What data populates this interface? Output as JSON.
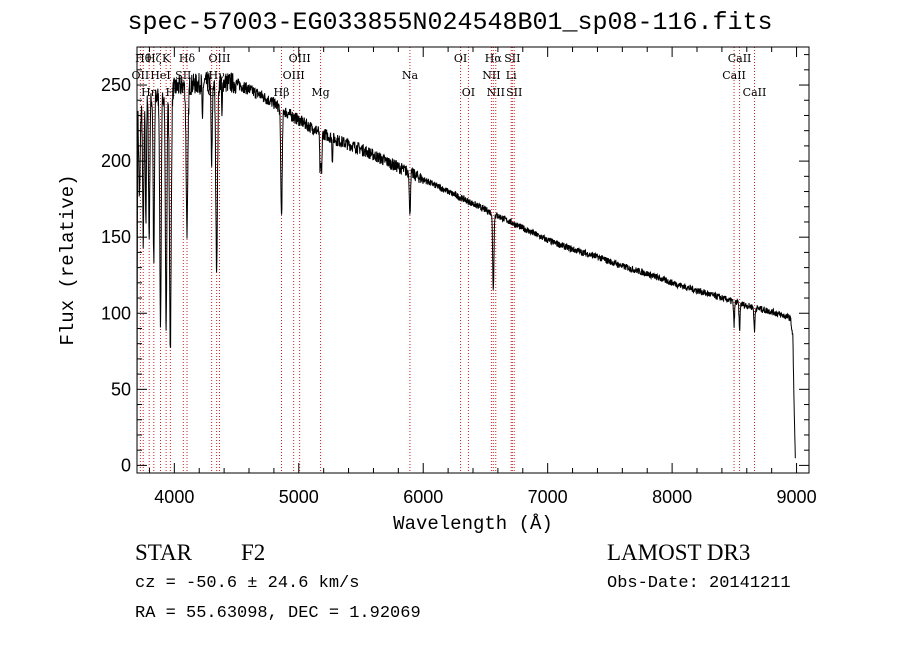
{
  "page": {
    "title": "spec-57003-EG033855N024548B01_sp08-116.fits"
  },
  "info": {
    "object_class": "STAR",
    "subclass": "F2",
    "survey": "LAMOST DR3",
    "cz": "cz = -50.6 ± 24.6 km/s",
    "obs_date": "Obs-Date: 20141211",
    "coords": "RA =  55.63098, DEC =    1.92069"
  },
  "colors": {
    "line_marker": "#cc2222",
    "spectrum": "#000000",
    "axes": "#000000"
  },
  "chart_data": {
    "type": "line",
    "title": "spec-57003-EG033855N024548B01_sp08-116.fits",
    "xlabel": "Wavelength (Å)",
    "ylabel": "Flux (relative)",
    "xlim": [
      3700,
      9100
    ],
    "ylim": [
      -5,
      275
    ],
    "x_ticks": [
      4000,
      5000,
      6000,
      7000,
      8000,
      9000
    ],
    "y_ticks": [
      0,
      50,
      100,
      150,
      200,
      250
    ],
    "continuum": [
      [
        3700,
        5
      ],
      [
        3705,
        235
      ],
      [
        3750,
        238
      ],
      [
        3800,
        240
      ],
      [
        3850,
        242
      ],
      [
        3900,
        244
      ],
      [
        3950,
        246
      ],
      [
        4000,
        248
      ],
      [
        4100,
        250
      ],
      [
        4200,
        251
      ],
      [
        4300,
        252
      ],
      [
        4400,
        252
      ],
      [
        4500,
        251
      ],
      [
        4600,
        247
      ],
      [
        4700,
        243
      ],
      [
        4800,
        238
      ],
      [
        4900,
        232
      ],
      [
        5000,
        227
      ],
      [
        5100,
        222
      ],
      [
        5200,
        218
      ],
      [
        5300,
        214
      ],
      [
        5400,
        211
      ],
      [
        5500,
        208
      ],
      [
        5600,
        204
      ],
      [
        5700,
        200
      ],
      [
        5800,
        196
      ],
      [
        5900,
        192
      ],
      [
        6000,
        188
      ],
      [
        6100,
        184
      ],
      [
        6200,
        180
      ],
      [
        6300,
        176
      ],
      [
        6400,
        172
      ],
      [
        6500,
        168
      ],
      [
        6600,
        164
      ],
      [
        6700,
        160
      ],
      [
        6800,
        156
      ],
      [
        6900,
        152
      ],
      [
        7000,
        148
      ],
      [
        7200,
        142
      ],
      [
        7400,
        137
      ],
      [
        7600,
        131
      ],
      [
        7800,
        126
      ],
      [
        8000,
        120
      ],
      [
        8200,
        115
      ],
      [
        8400,
        110
      ],
      [
        8600,
        105
      ],
      [
        8800,
        101
      ],
      [
        8950,
        97
      ],
      [
        8970,
        85
      ],
      [
        8980,
        40
      ],
      [
        8990,
        5
      ]
    ],
    "absorption_features": [
      {
        "center": 3720,
        "depth": 60,
        "width": 6
      },
      {
        "center": 3750,
        "depth": 90,
        "width": 5
      },
      {
        "center": 3771,
        "depth": 80,
        "width": 4
      },
      {
        "center": 3798,
        "depth": 90,
        "width": 5
      },
      {
        "center": 3835,
        "depth": 110,
        "width": 5
      },
      {
        "center": 3889,
        "depth": 150,
        "width": 6
      },
      {
        "center": 3934,
        "depth": 155,
        "width": 6
      },
      {
        "center": 3968,
        "depth": 170,
        "width": 7
      },
      {
        "center": 4102,
        "depth": 95,
        "width": 7
      },
      {
        "center": 4226,
        "depth": 30,
        "width": 3
      },
      {
        "center": 4300,
        "depth": 55,
        "width": 5
      },
      {
        "center": 4340,
        "depth": 120,
        "width": 7
      },
      {
        "center": 4383,
        "depth": 25,
        "width": 3
      },
      {
        "center": 4861,
        "depth": 70,
        "width": 6
      },
      {
        "center": 5172,
        "depth": 28,
        "width": 4
      },
      {
        "center": 5183,
        "depth": 25,
        "width": 4
      },
      {
        "center": 5270,
        "depth": 15,
        "width": 3
      },
      {
        "center": 5893,
        "depth": 30,
        "width": 4
      },
      {
        "center": 6563,
        "depth": 50,
        "width": 5
      },
      {
        "center": 8498,
        "depth": 15,
        "width": 4
      },
      {
        "center": 8542,
        "depth": 18,
        "width": 4
      },
      {
        "center": 8662,
        "depth": 16,
        "width": 4
      }
    ],
    "line_markers": [
      {
        "label": "OII",
        "wavelength": 3727,
        "row": 2
      },
      {
        "label": "Hθ",
        "wavelength": 3750,
        "row": 1
      },
      {
        "label": "Hη",
        "wavelength": 3798,
        "row": 3
      },
      {
        "label": "Hζ",
        "wavelength": 3835,
        "row": 1
      },
      {
        "label": "HeI",
        "wavelength": 3889,
        "row": 2
      },
      {
        "label": "K",
        "wavelength": 3934,
        "row": 1
      },
      {
        "label": "H",
        "wavelength": 3968,
        "row": 3
      },
      {
        "label": "SII",
        "wavelength": 4072,
        "row": 2
      },
      {
        "label": "Hδ",
        "wavelength": 4102,
        "row": 1
      },
      {
        "label": "G",
        "wavelength": 4300,
        "row": 3
      },
      {
        "label": "Hγ",
        "wavelength": 4340,
        "row": 2
      },
      {
        "label": "OIII",
        "wavelength": 4363,
        "row": 1
      },
      {
        "label": "Hβ",
        "wavelength": 4861,
        "row": 3
      },
      {
        "label": "OIII",
        "wavelength": 4959,
        "row": 2
      },
      {
        "label": "OIII",
        "wavelength": 5007,
        "row": 1
      },
      {
        "label": "Mg",
        "wavelength": 5175,
        "row": 3
      },
      {
        "label": "Na",
        "wavelength": 5893,
        "row": 2
      },
      {
        "label": "OI",
        "wavelength": 6300,
        "row": 1
      },
      {
        "label": "OI",
        "wavelength": 6363,
        "row": 3
      },
      {
        "label": "NII",
        "wavelength": 6548,
        "row": 2
      },
      {
        "label": "Hα",
        "wavelength": 6563,
        "row": 1
      },
      {
        "label": "NII",
        "wavelength": 6583,
        "row": 3
      },
      {
        "label": "Li",
        "wavelength": 6707,
        "row": 2
      },
      {
        "label": "SII",
        "wavelength": 6716,
        "row": 1
      },
      {
        "label": "SII",
        "wavelength": 6731,
        "row": 3
      },
      {
        "label": "CaII",
        "wavelength": 8498,
        "row": 2
      },
      {
        "label": "CaII",
        "wavelength": 8542,
        "row": 1
      },
      {
        "label": "CaII",
        "wavelength": 8662,
        "row": 3
      }
    ]
  }
}
